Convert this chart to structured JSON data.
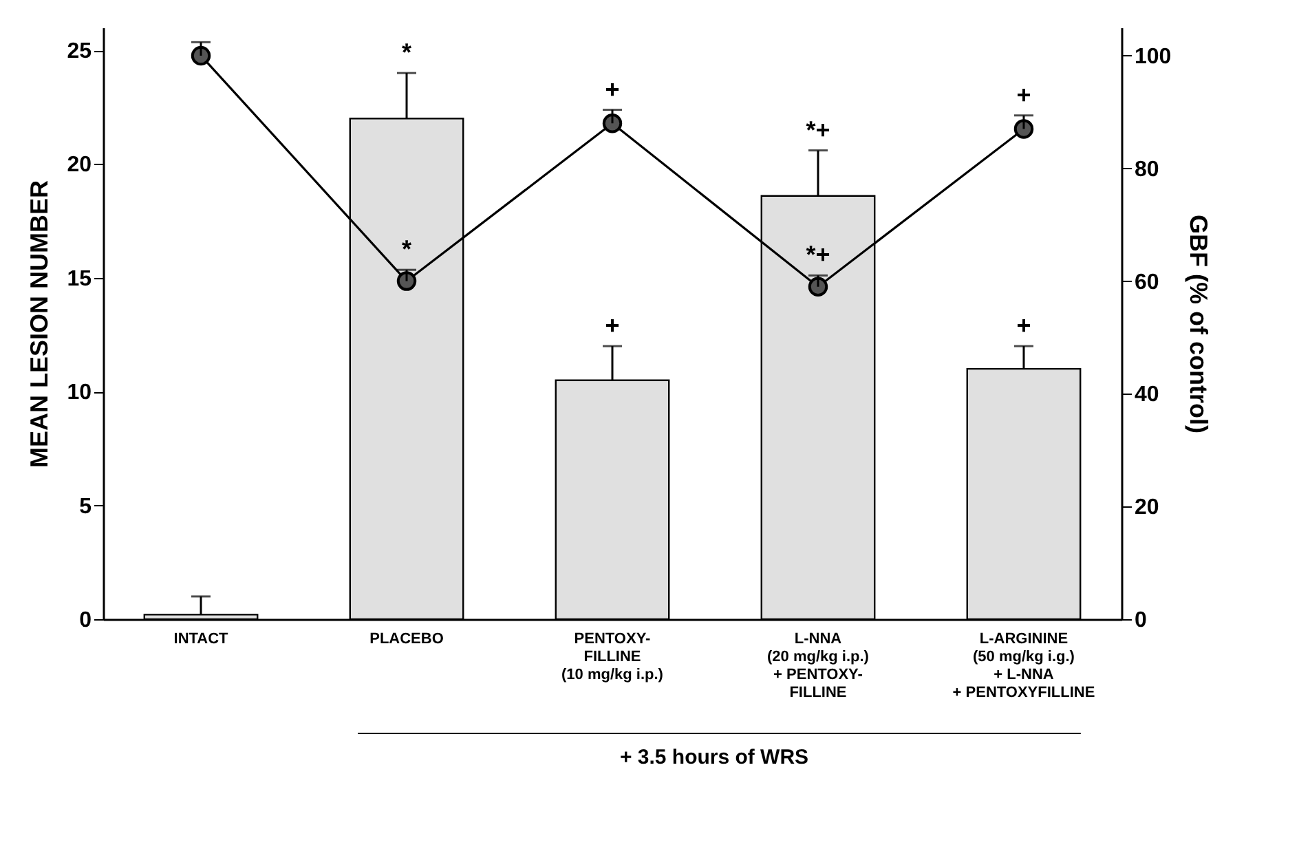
{
  "chart_data": {
    "type": "bar",
    "categories": [
      "INTACT",
      "PLACEBO",
      "PENTOXY-\nFILLINE\n(10 mg/kg i.p.)",
      "L-NNA\n(20 mg/kg i.p.)\n+ PENTOXY-\nFILLINE",
      "L-ARGININE\n(50 mg/kg i.g.)\n+ L-NNA\n+ PENTOXYFILLINE"
    ],
    "ylabel": "MEAN LESION NUMBER",
    "y2label": "GBF (% of control)",
    "ylim": [
      0,
      26
    ],
    "yticks": [
      0,
      5,
      10,
      15,
      20,
      25
    ],
    "y2lim": [
      0,
      105
    ],
    "y2ticks": [
      0,
      20,
      40,
      60,
      80,
      100
    ],
    "series": [
      {
        "color": "#e0e0e0",
        "values": [
          0.2,
          22.0,
          10.5,
          18.6,
          11.0
        ],
        "errors": [
          [
            0.2,
            1.0
          ],
          [
            22.0,
            24.0
          ],
          [
            10.5,
            12.0
          ],
          [
            18.6,
            20.6
          ],
          [
            11.0,
            12.0
          ]
        ],
        "value_labels": [
          null,
          "*",
          "+",
          "*+",
          "+"
        ]
      },
      {
        "type": "line",
        "axis": "y2",
        "color": "#000000",
        "marker": "circle",
        "values": [
          100,
          60,
          88,
          59,
          87
        ],
        "errors": [
          [
            100,
            102.4
          ],
          [
            60,
            62
          ],
          [
            88,
            90.4
          ],
          [
            59,
            61
          ],
          [
            87,
            89.4
          ]
        ],
        "value_labels": [
          null,
          "*",
          "+",
          "*+",
          "+"
        ]
      }
    ],
    "annotations": [
      "+ 3.5 hours of WRS"
    ],
    "grid": false
  }
}
